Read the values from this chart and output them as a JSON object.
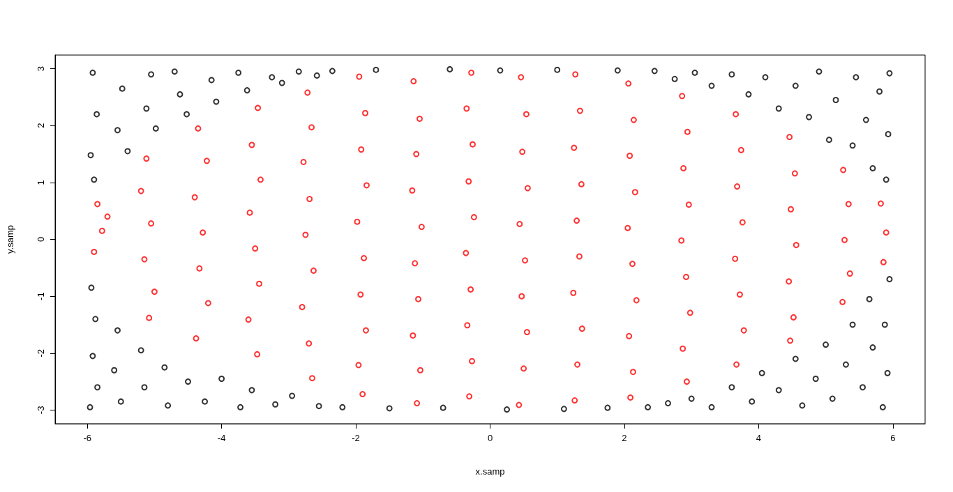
{
  "chart_data": {
    "type": "scatter",
    "xlabel": "x.samp",
    "ylabel": "y.samp",
    "xlim": [
      -6.48,
      6.48
    ],
    "ylim": [
      -3.24,
      3.24
    ],
    "xticks": [
      -6,
      -4,
      -2,
      0,
      2,
      4,
      6
    ],
    "yticks": [
      -3,
      -2,
      -1,
      0,
      1,
      2,
      3
    ],
    "marker": "circle",
    "series": [
      {
        "color": "#000000",
        "x": [
          -5.92,
          -5.86,
          -5.95,
          -5.9,
          -5.48,
          -5.55,
          -5.4,
          -5.05,
          -5.12,
          -4.98,
          -4.62,
          -4.7,
          -4.52,
          -4.15,
          -4.08,
          -3.75,
          -3.62,
          -3.25,
          -3.1,
          -2.85,
          -2.58,
          -2.35,
          -1.7,
          -0.6,
          0.15,
          1.0,
          1.9,
          2.45,
          2.75,
          3.05,
          3.3,
          3.6,
          3.85,
          4.1,
          4.3,
          4.55,
          4.75,
          4.9,
          5.05,
          5.15,
          5.4,
          5.45,
          5.6,
          5.7,
          5.8,
          5.93,
          5.95,
          5.9,
          -5.94,
          -5.88,
          -5.92,
          -5.85,
          -5.96,
          -5.55,
          -5.6,
          -5.5,
          -5.2,
          -5.15,
          -4.85,
          -4.8,
          -4.5,
          -4.25,
          -4.0,
          -3.72,
          -3.55,
          -3.2,
          -2.95,
          -2.55,
          -2.2,
          -1.5,
          -0.7,
          0.25,
          1.1,
          1.75,
          2.35,
          2.65,
          3.0,
          3.3,
          3.6,
          3.9,
          4.05,
          4.3,
          4.55,
          4.65,
          4.85,
          5.0,
          5.1,
          5.3,
          5.4,
          5.55,
          5.65,
          5.7,
          5.85,
          5.92,
          5.88,
          5.95
        ],
        "values": [
          2.93,
          2.2,
          1.48,
          1.05,
          2.65,
          1.92,
          1.55,
          2.9,
          2.3,
          1.95,
          2.55,
          2.95,
          2.2,
          2.8,
          2.42,
          2.93,
          2.62,
          2.85,
          2.75,
          2.95,
          2.88,
          2.96,
          2.98,
          2.99,
          2.97,
          2.98,
          2.97,
          2.96,
          2.82,
          2.93,
          2.7,
          2.9,
          2.55,
          2.85,
          2.3,
          2.7,
          2.15,
          2.95,
          1.75,
          2.45,
          1.65,
          2.85,
          2.1,
          1.25,
          2.6,
          1.85,
          2.92,
          1.05,
          -0.85,
          -1.4,
          -2.05,
          -2.6,
          -2.95,
          -1.6,
          -2.3,
          -2.85,
          -1.95,
          -2.6,
          -2.25,
          -2.92,
          -2.5,
          -2.85,
          -2.45,
          -2.95,
          -2.65,
          -2.9,
          -2.75,
          -2.93,
          -2.95,
          -2.97,
          -2.96,
          -2.99,
          -2.98,
          -2.96,
          -2.95,
          -2.88,
          -2.8,
          -2.95,
          -2.6,
          -2.85,
          -2.35,
          -2.65,
          -2.1,
          -2.92,
          -2.45,
          -1.85,
          -2.8,
          -2.2,
          -1.5,
          -2.6,
          -1.05,
          -1.9,
          -2.95,
          -2.35,
          -1.5,
          -0.7
        ]
      },
      {
        "color": "#ff0000",
        "x": [
          -5.85,
          -5.78,
          -5.9,
          -5.7,
          -5.12,
          -5.2,
          -5.05,
          -5.15,
          -5.0,
          -5.08,
          -4.35,
          -4.22,
          -4.4,
          -4.28,
          -4.33,
          -4.2,
          -4.38,
          -3.46,
          -3.55,
          -3.42,
          -3.58,
          -3.5,
          -3.44,
          -3.6,
          -3.47,
          -2.72,
          -2.66,
          -2.78,
          -2.69,
          -2.75,
          -2.63,
          -2.8,
          -2.7,
          -2.65,
          -1.95,
          -1.86,
          -1.92,
          -1.84,
          -1.98,
          -1.88,
          -1.93,
          -1.85,
          -1.96,
          -1.9,
          -1.14,
          -1.05,
          -1.1,
          -1.16,
          -1.02,
          -1.12,
          -1.07,
          -1.15,
          -1.04,
          -1.09,
          -0.28,
          -0.35,
          -0.26,
          -0.32,
          -0.24,
          -0.36,
          -0.29,
          -0.34,
          -0.27,
          -0.31,
          0.46,
          0.54,
          0.48,
          0.56,
          0.44,
          0.52,
          0.47,
          0.55,
          0.5,
          0.43,
          1.27,
          1.34,
          1.25,
          1.36,
          1.29,
          1.33,
          1.24,
          1.37,
          1.3,
          1.26,
          2.06,
          2.14,
          2.08,
          2.16,
          2.05,
          2.12,
          2.18,
          2.07,
          2.13,
          2.09,
          2.86,
          2.94,
          2.88,
          2.96,
          2.85,
          2.92,
          2.98,
          2.87,
          2.93,
          3.66,
          3.74,
          3.68,
          3.76,
          3.65,
          3.72,
          3.78,
          3.67,
          4.46,
          4.54,
          4.48,
          4.56,
          4.45,
          4.52,
          4.47,
          5.26,
          5.34,
          5.28,
          5.36,
          5.25,
          5.82,
          5.9,
          5.86
        ],
        "values": [
          0.62,
          0.15,
          -0.22,
          0.4,
          1.42,
          0.85,
          0.28,
          -0.35,
          -0.92,
          -1.38,
          1.95,
          1.38,
          0.74,
          0.12,
          -0.51,
          -1.12,
          -1.74,
          2.31,
          1.66,
          1.05,
          0.47,
          -0.16,
          -0.78,
          -1.41,
          -2.02,
          2.58,
          1.97,
          1.36,
          0.71,
          0.08,
          -0.55,
          -1.19,
          -1.83,
          -2.44,
          2.86,
          2.22,
          1.58,
          0.95,
          0.31,
          -0.33,
          -0.97,
          -1.6,
          -2.21,
          -2.72,
          2.78,
          2.12,
          1.5,
          0.86,
          0.22,
          -0.42,
          -1.05,
          -1.69,
          -2.3,
          -2.88,
          2.93,
          2.3,
          1.67,
          1.02,
          0.39,
          -0.24,
          -0.88,
          -1.51,
          -2.14,
          -2.76,
          2.85,
          2.2,
          1.54,
          0.9,
          0.27,
          -0.37,
          -1.0,
          -1.63,
          -2.27,
          -2.91,
          2.9,
          2.26,
          1.61,
          0.97,
          0.33,
          -0.3,
          -0.94,
          -1.57,
          -2.2,
          -2.83,
          2.74,
          2.1,
          1.47,
          0.83,
          0.2,
          -0.43,
          -1.07,
          -1.7,
          -2.33,
          -2.78,
          2.52,
          1.89,
          1.25,
          0.61,
          -0.02,
          -0.66,
          -1.29,
          -1.92,
          -2.5,
          2.2,
          1.57,
          0.93,
          0.3,
          -0.34,
          -0.97,
          -1.6,
          -2.2,
          1.8,
          1.16,
          0.53,
          -0.1,
          -0.74,
          -1.37,
          -1.78,
          1.22,
          0.62,
          -0.01,
          -0.6,
          -1.1,
          0.63,
          0.12,
          -0.4
        ]
      }
    ]
  }
}
